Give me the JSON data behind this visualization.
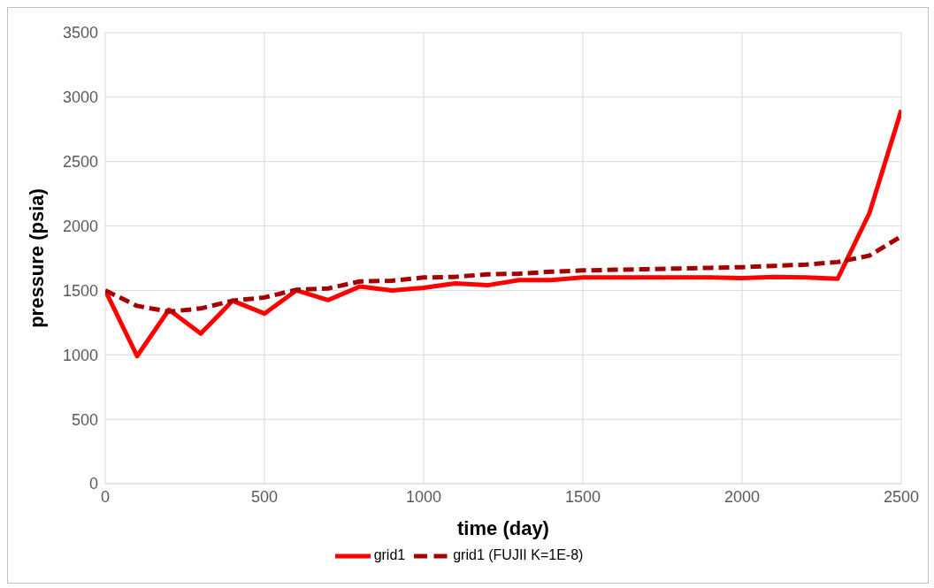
{
  "chart_data": {
    "type": "line",
    "xlabel": "time (day)",
    "ylabel": "pressure (psia)",
    "x": [
      0,
      100,
      200,
      300,
      400,
      500,
      600,
      700,
      800,
      900,
      1000,
      1100,
      1200,
      1300,
      1400,
      1500,
      1600,
      1700,
      1800,
      1900,
      2000,
      2100,
      2200,
      2300,
      2400,
      2500
    ],
    "series": [
      {
        "name": "grid1",
        "color": "#ff0000",
        "line_style": "solid",
        "values": [
          1500,
          990,
          1350,
          1165,
          1420,
          1320,
          1500,
          1425,
          1530,
          1500,
          1520,
          1555,
          1540,
          1580,
          1580,
          1600,
          1600,
          1600,
          1600,
          1600,
          1595,
          1605,
          1600,
          1590,
          2100,
          2900
        ]
      },
      {
        "name": "grid1 (FUJII K=1E-8)",
        "color": "#a50000",
        "line_style": "dashed",
        "values": [
          1500,
          1380,
          1335,
          1360,
          1420,
          1445,
          1505,
          1515,
          1570,
          1575,
          1600,
          1605,
          1625,
          1630,
          1645,
          1655,
          1660,
          1665,
          1670,
          1675,
          1680,
          1690,
          1700,
          1720,
          1770,
          1920
        ]
      }
    ],
    "xlim": [
      0,
      2500
    ],
    "xticks": [
      0,
      500,
      1000,
      1500,
      2000,
      2500
    ],
    "ylim": [
      0,
      3500
    ],
    "yticks": [
      0,
      500,
      1000,
      1500,
      2000,
      2500,
      3000,
      3500
    ],
    "grid": true,
    "legend": "bottom",
    "marker": "none"
  }
}
